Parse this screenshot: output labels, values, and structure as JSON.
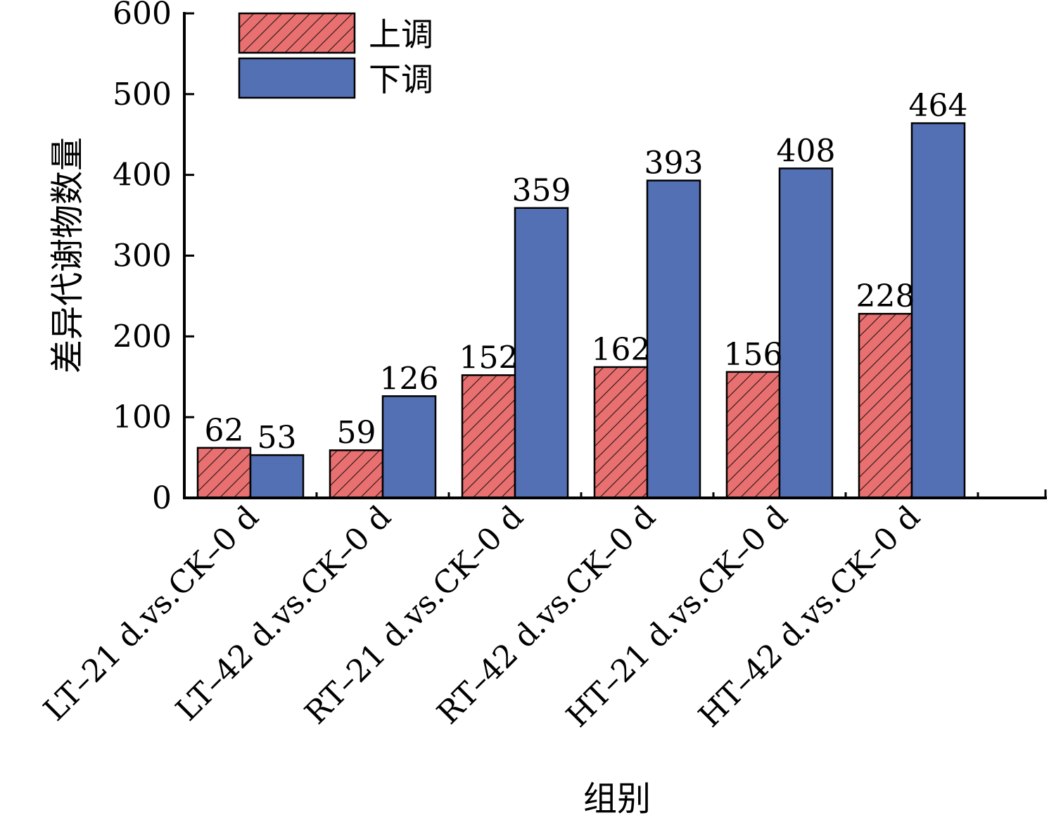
{
  "chart_data": {
    "type": "bar",
    "xlabel": "组别",
    "ylabel": "差异代谢物数量",
    "ylim": [
      0,
      600
    ],
    "yticks": [
      0,
      100,
      200,
      300,
      400,
      500,
      600
    ],
    "grid": false,
    "legend_position": "top-left",
    "categories": [
      "LT–21 d.vs.CK–0 d",
      "LT–42 d.vs.CK–0 d",
      "RT–21 d.vs.CK–0 d",
      "RT–42 d.vs.CK–0 d",
      "HT–21 d.vs.CK–0 d",
      "HT–42 d.vs.CK–0 d"
    ],
    "series": [
      {
        "name": "上调",
        "values": [
          62,
          59,
          152,
          162,
          156,
          228
        ],
        "color": "#e87070",
        "pattern": "hatch"
      },
      {
        "name": "下调",
        "values": [
          53,
          126,
          359,
          393,
          408,
          464
        ],
        "color": "#5470b4",
        "pattern": "solid"
      }
    ]
  }
}
